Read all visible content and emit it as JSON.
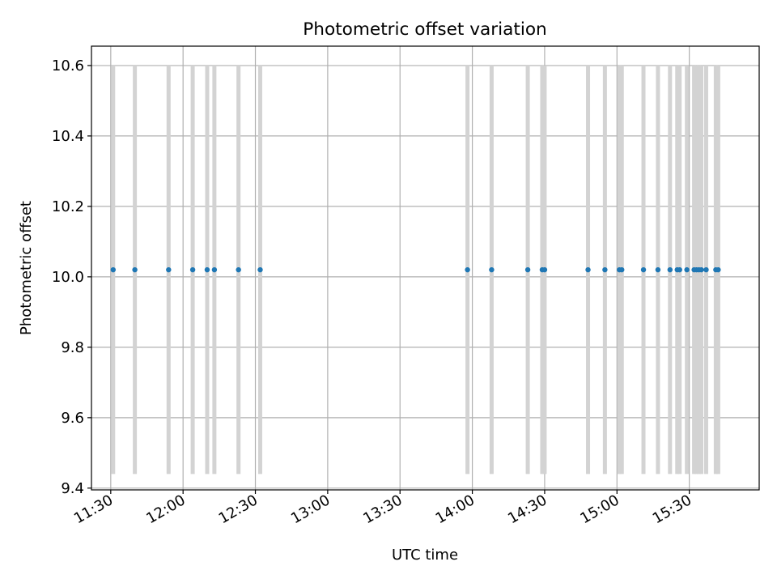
{
  "chart_data": {
    "type": "scatter",
    "title": "Photometric offset variation",
    "xlabel": "UTC time",
    "ylabel": "Photometric offset",
    "x_unit": "UTC time (HH:MM)",
    "xlim": [
      "11:22",
      "15:59"
    ],
    "ylim": [
      9.395,
      10.655
    ],
    "x_ticks": [
      "11:30",
      "12:00",
      "12:30",
      "13:00",
      "13:30",
      "14:00",
      "14:30",
      "15:00",
      "15:30"
    ],
    "y_ticks": [
      9.4,
      9.6,
      9.8,
      10.0,
      10.2,
      10.4,
      10.6
    ],
    "y_tick_labels": [
      "9.4",
      "9.6",
      "9.8",
      "10.0",
      "10.2",
      "10.4",
      "10.6"
    ],
    "grid": true,
    "series": [
      {
        "color": "#1f77b4",
        "errorbar_color": "#d3d3d3",
        "error_range": [
          9.44,
          10.6
        ],
        "points": [
          {
            "x": "11:31",
            "y": 10.02
          },
          {
            "x": "11:40",
            "y": 10.02
          },
          {
            "x": "11:54",
            "y": 10.02
          },
          {
            "x": "12:04",
            "y": 10.02
          },
          {
            "x": "12:10",
            "y": 10.02
          },
          {
            "x": "12:13",
            "y": 10.02
          },
          {
            "x": "12:23",
            "y": 10.02
          },
          {
            "x": "12:32",
            "y": 10.02
          },
          {
            "x": "13:58",
            "y": 10.02
          },
          {
            "x": "14:08",
            "y": 10.02
          },
          {
            "x": "14:23",
            "y": 10.02
          },
          {
            "x": "14:29",
            "y": 10.02
          },
          {
            "x": "14:30",
            "y": 10.02
          },
          {
            "x": "14:48",
            "y": 10.02
          },
          {
            "x": "14:55",
            "y": 10.02
          },
          {
            "x": "15:01",
            "y": 10.02
          },
          {
            "x": "15:02",
            "y": 10.02
          },
          {
            "x": "15:11",
            "y": 10.02
          },
          {
            "x": "15:17",
            "y": 10.02
          },
          {
            "x": "15:22",
            "y": 10.02
          },
          {
            "x": "15:25",
            "y": 10.02
          },
          {
            "x": "15:26",
            "y": 10.02
          },
          {
            "x": "15:29",
            "y": 10.02
          },
          {
            "x": "15:32",
            "y": 10.02
          },
          {
            "x": "15:33",
            "y": 10.02
          },
          {
            "x": "15:34",
            "y": 10.02
          },
          {
            "x": "15:35",
            "y": 10.02
          },
          {
            "x": "15:37",
            "y": 10.02
          },
          {
            "x": "15:41",
            "y": 10.02
          },
          {
            "x": "15:42",
            "y": 10.02
          }
        ]
      }
    ]
  }
}
